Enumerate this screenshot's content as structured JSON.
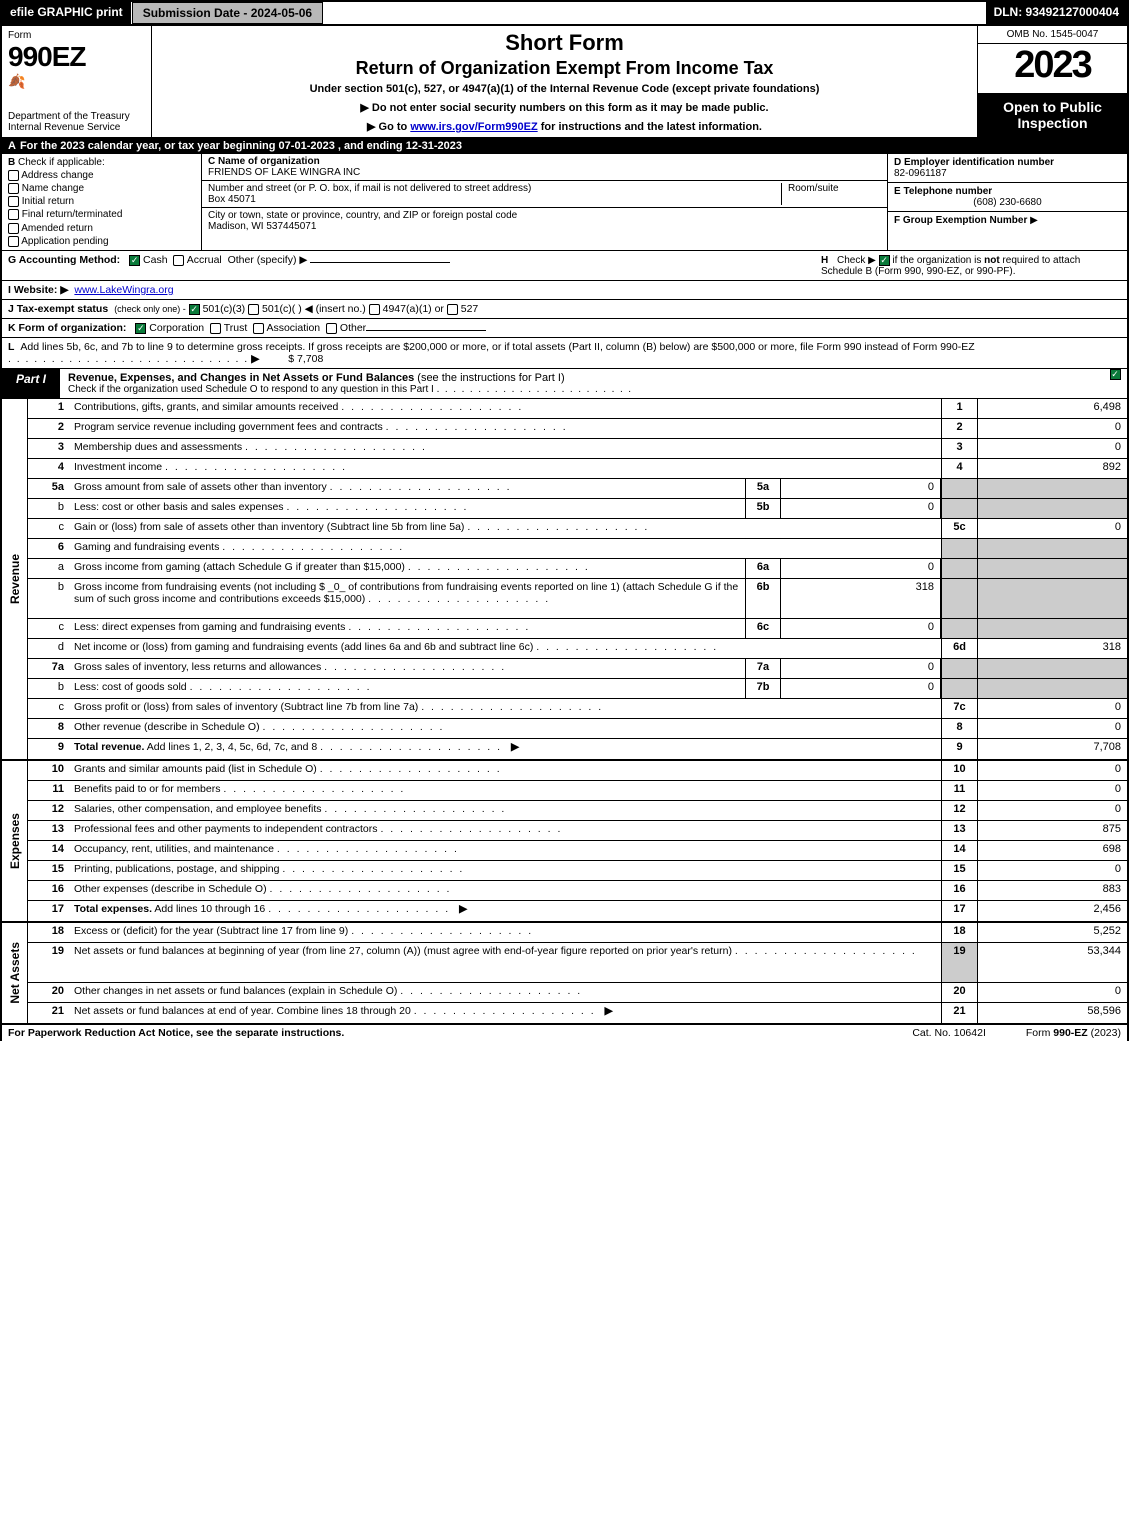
{
  "topbar": {
    "efile": "efile GRAPHIC print",
    "submission": "Submission Date - 2024-05-06",
    "dln": "DLN: 93492127000404"
  },
  "header": {
    "form_label": "Form",
    "form_no": "990EZ",
    "dept": "Department of the Treasury",
    "irs": "Internal Revenue Service",
    "short_form": "Short Form",
    "title": "Return of Organization Exempt From Income Tax",
    "subtitle": "Under section 501(c), 527, or 4947(a)(1) of the Internal Revenue Code (except private foundations)",
    "instr1": "▶ Do not enter social security numbers on this form as it may be made public.",
    "instr2_pre": "▶ Go to ",
    "instr2_link": "www.irs.gov/Form990EZ",
    "instr2_post": " for instructions and the latest information.",
    "omb": "OMB No. 1545-0047",
    "year": "2023",
    "open": "Open to Public Inspection"
  },
  "lineA": "For the 2023 calendar year, or tax year beginning 07-01-2023 , and ending 12-31-2023",
  "boxB": {
    "label": "Check if applicable:",
    "opts": [
      "Address change",
      "Name change",
      "Initial return",
      "Final return/terminated",
      "Amended return",
      "Application pending"
    ]
  },
  "boxC": {
    "label": "C Name of organization",
    "name": "FRIENDS OF LAKE WINGRA INC",
    "street_label": "Number and street (or P. O. box, if mail is not delivered to street address)",
    "room_label": "Room/suite",
    "street": "Box 45071",
    "city_label": "City or town, state or province, country, and ZIP or foreign postal code",
    "city": "Madison, WI  537445071"
  },
  "boxD": {
    "label": "D Employer identification number",
    "val": "82-0961187"
  },
  "boxE": {
    "label": "E Telephone number",
    "val": "(608) 230-6680"
  },
  "boxF": {
    "label": "F Group Exemption Number",
    "arrow": "▶"
  },
  "lineG": {
    "label": "G Accounting Method:",
    "cash": "Cash",
    "accrual": "Accrual",
    "other": "Other (specify) ▶"
  },
  "lineH": {
    "label": "H",
    "txt_pre": "Check ▶ ",
    "txt_post": " if the organization is ",
    "not": "not",
    "txt2": " required to attach Schedule B (Form 990, 990-EZ, or 990-PF)."
  },
  "lineI": {
    "label": "I Website: ▶",
    "val": "www.LakeWingra.org"
  },
  "lineJ": {
    "label": "J Tax-exempt status",
    "note": "(check only one) -",
    "o1": "501(c)(3)",
    "o2": "501(c)(   ) ◀ (insert no.)",
    "o3": "4947(a)(1) or",
    "o4": "527"
  },
  "lineK": {
    "label": "K Form of organization:",
    "o1": "Corporation",
    "o2": "Trust",
    "o3": "Association",
    "o4": "Other"
  },
  "lineL": {
    "label": "L",
    "txt": "Add lines 5b, 6c, and 7b to line 9 to determine gross receipts. If gross receipts are $200,000 or more, or if total assets (Part II, column (B) below) are $500,000 or more, file Form 990 instead of Form 990-EZ",
    "val": "$ 7,708"
  },
  "partI": {
    "tab": "Part I",
    "title": "Revenue, Expenses, and Changes in Net Assets or Fund Balances",
    "note": "(see the instructions for Part I)",
    "sub": "Check if the organization used Schedule O to respond to any question in this Part I"
  },
  "sections": {
    "revenue": "Revenue",
    "expenses": "Expenses",
    "netassets": "Net Assets"
  },
  "rows": [
    {
      "n": "1",
      "t": "Contributions, gifts, grants, and similar amounts received",
      "rn": "1",
      "rv": "6,498"
    },
    {
      "n": "2",
      "t": "Program service revenue including government fees and contracts",
      "rn": "2",
      "rv": "0"
    },
    {
      "n": "3",
      "t": "Membership dues and assessments",
      "rn": "3",
      "rv": "0"
    },
    {
      "n": "4",
      "t": "Investment income",
      "rn": "4",
      "rv": "892"
    },
    {
      "n": "5a",
      "t": "Gross amount from sale of assets other than inventory",
      "mn": "5a",
      "mv": "0",
      "shaded": true
    },
    {
      "n": "b",
      "t": "Less: cost or other basis and sales expenses",
      "mn": "5b",
      "mv": "0",
      "shaded": true
    },
    {
      "n": "c",
      "t": "Gain or (loss) from sale of assets other than inventory (Subtract line 5b from line 5a)",
      "rn": "5c",
      "rv": "0"
    },
    {
      "n": "6",
      "t": "Gaming and fundraising events",
      "shaded": true,
      "noval": true
    },
    {
      "n": "a",
      "t": "Gross income from gaming (attach Schedule G if greater than $15,000)",
      "mn": "6a",
      "mv": "0",
      "shaded": true
    },
    {
      "n": "b",
      "t": "Gross income from fundraising events (not including $ _0_ of contributions from fundraising events reported on line 1) (attach Schedule G if the sum of such gross income and contributions exceeds $15,000)",
      "mn": "6b",
      "mv": "318",
      "shaded": true,
      "tall": true
    },
    {
      "n": "c",
      "t": "Less: direct expenses from gaming and fundraising events",
      "mn": "6c",
      "mv": "0",
      "shaded": true
    },
    {
      "n": "d",
      "t": "Net income or (loss) from gaming and fundraising events (add lines 6a and 6b and subtract line 6c)",
      "rn": "6d",
      "rv": "318"
    },
    {
      "n": "7a",
      "t": "Gross sales of inventory, less returns and allowances",
      "mn": "7a",
      "mv": "0",
      "shaded": true
    },
    {
      "n": "b",
      "t": "Less: cost of goods sold",
      "mn": "7b",
      "mv": "0",
      "shaded": true
    },
    {
      "n": "c",
      "t": "Gross profit or (loss) from sales of inventory (Subtract line 7b from line 7a)",
      "rn": "7c",
      "rv": "0"
    },
    {
      "n": "8",
      "t": "Other revenue (describe in Schedule O)",
      "rn": "8",
      "rv": "0"
    },
    {
      "n": "9",
      "t": "Total revenue. Add lines 1, 2, 3, 4, 5c, 6d, 7c, and 8",
      "rn": "9",
      "rv": "7,708",
      "bold": true,
      "arrow": true
    }
  ],
  "exp_rows": [
    {
      "n": "10",
      "t": "Grants and similar amounts paid (list in Schedule O)",
      "rn": "10",
      "rv": "0"
    },
    {
      "n": "11",
      "t": "Benefits paid to or for members",
      "rn": "11",
      "rv": "0"
    },
    {
      "n": "12",
      "t": "Salaries, other compensation, and employee benefits",
      "rn": "12",
      "rv": "0"
    },
    {
      "n": "13",
      "t": "Professional fees and other payments to independent contractors",
      "rn": "13",
      "rv": "875"
    },
    {
      "n": "14",
      "t": "Occupancy, rent, utilities, and maintenance",
      "rn": "14",
      "rv": "698"
    },
    {
      "n": "15",
      "t": "Printing, publications, postage, and shipping",
      "rn": "15",
      "rv": "0"
    },
    {
      "n": "16",
      "t": "Other expenses (describe in Schedule O)",
      "rn": "16",
      "rv": "883"
    },
    {
      "n": "17",
      "t": "Total expenses. Add lines 10 through 16",
      "rn": "17",
      "rv": "2,456",
      "bold": true,
      "arrow": true
    }
  ],
  "na_rows": [
    {
      "n": "18",
      "t": "Excess or (deficit) for the year (Subtract line 17 from line 9)",
      "rn": "18",
      "rv": "5,252"
    },
    {
      "n": "19",
      "t": "Net assets or fund balances at beginning of year (from line 27, column (A)) (must agree with end-of-year figure reported on prior year's return)",
      "rn": "19",
      "rv": "53,344",
      "tall": true,
      "shaded_first": true
    },
    {
      "n": "20",
      "t": "Other changes in net assets or fund balances (explain in Schedule O)",
      "rn": "20",
      "rv": "0"
    },
    {
      "n": "21",
      "t": "Net assets or fund balances at end of year. Combine lines 18 through 20",
      "rn": "21",
      "rv": "58,596",
      "arrow": true
    }
  ],
  "footer": {
    "l": "For Paperwork Reduction Act Notice, see the separate instructions.",
    "m": "Cat. No. 10642I",
    "r_pre": "Form ",
    "r_bold": "990-EZ",
    "r_post": " (2023)"
  }
}
